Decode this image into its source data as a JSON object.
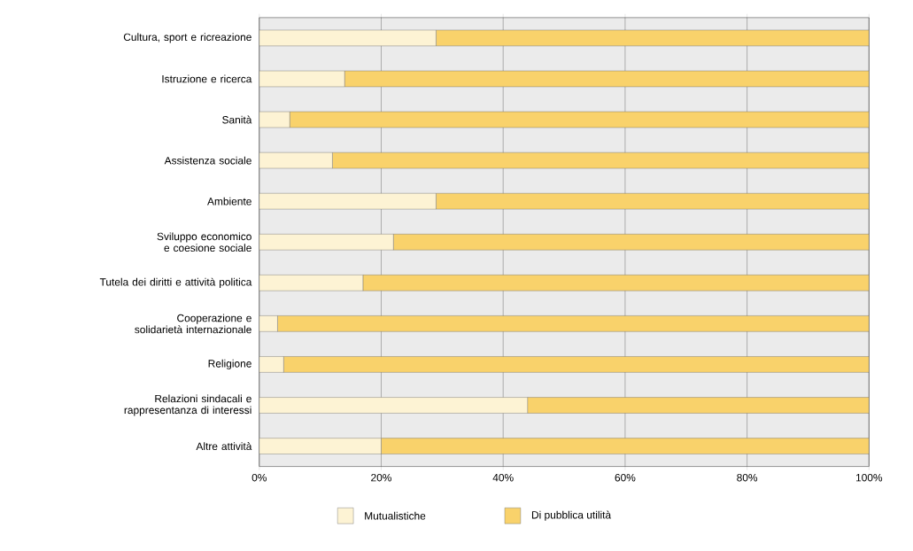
{
  "chart_data": {
    "type": "bar",
    "orientation": "horizontal",
    "stacked": true,
    "categories": [
      "Cultura, sport e ricreazione",
      "Istruzione e ricerca",
      "Sanità",
      "Assistenza sociale",
      "Ambiente",
      "Sviluppo economico e coesione sociale",
      "Tutela dei diritti e attività politica",
      "Cooperazione e solidarietà internazionale",
      "Religione",
      "Relazioni sindacali e rappresentanza di interessi",
      "Altre attività"
    ],
    "series": [
      {
        "name": "Mutualistiche",
        "color": "#fdf3d4",
        "values": [
          29,
          14,
          5,
          12,
          29,
          22,
          17,
          3,
          4,
          44,
          20
        ]
      },
      {
        "name": "Di pubblica utilità",
        "color": "#f9d26b",
        "values": [
          71,
          86,
          95,
          88,
          71,
          78,
          83,
          97,
          96,
          56,
          80
        ]
      }
    ],
    "xlim": [
      0,
      100
    ],
    "xticks": [
      {
        "value": 0,
        "label": "0%"
      },
      {
        "value": 20,
        "label": "20%"
      },
      {
        "value": 40,
        "label": "40%"
      },
      {
        "value": 60,
        "label": "60%"
      },
      {
        "value": 80,
        "label": "80%"
      },
      {
        "value": 100,
        "label": "100%"
      }
    ],
    "grid": "x",
    "legend": "bottom"
  }
}
